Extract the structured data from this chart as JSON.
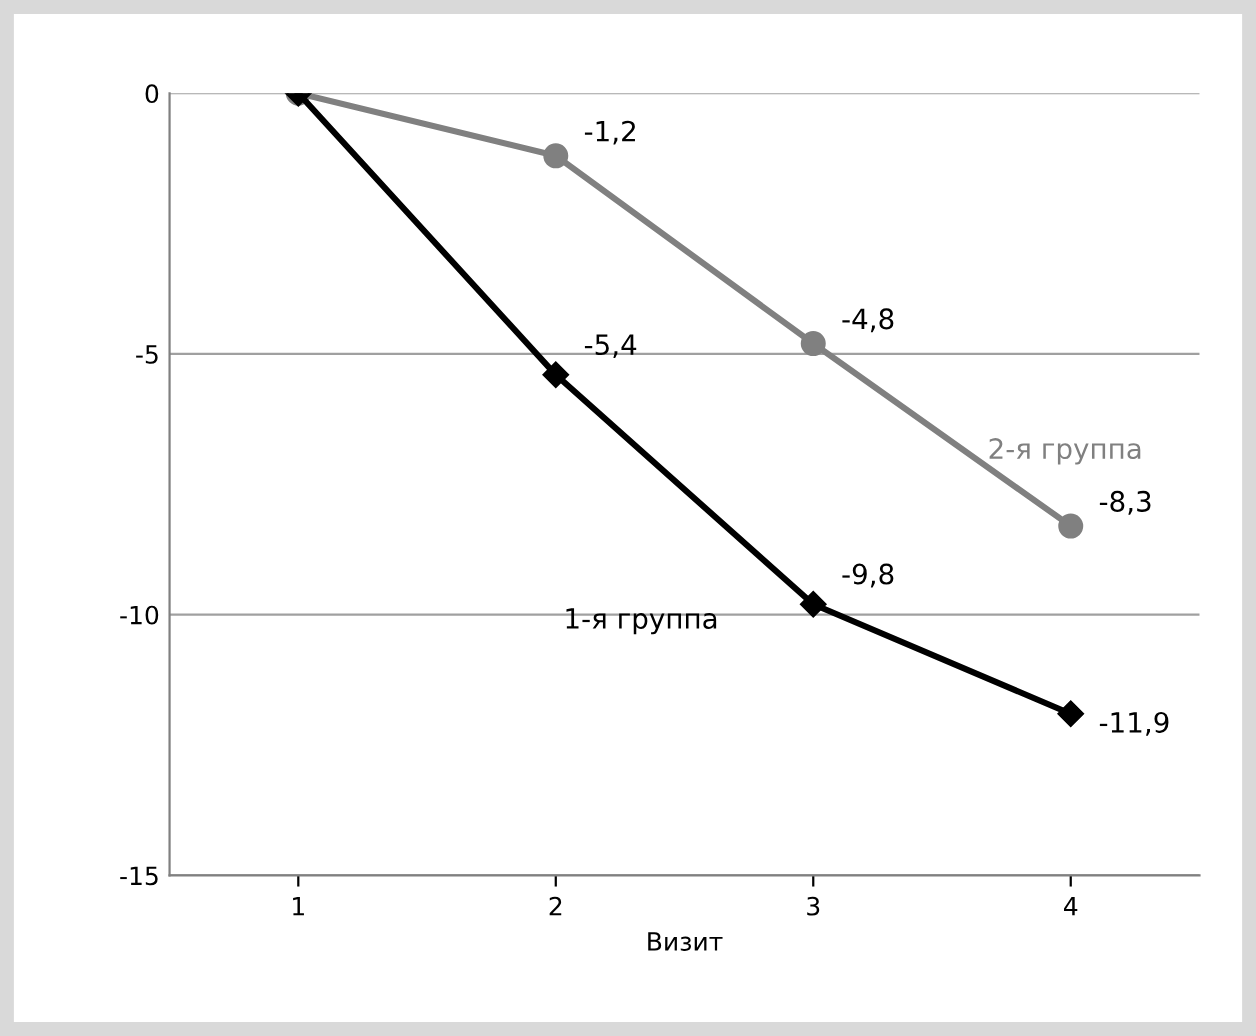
{
  "chart_data": {
    "type": "line",
    "xlabel": "Визит",
    "categories": [
      "1",
      "2",
      "3",
      "4"
    ],
    "series": [
      {
        "name": "2-я группа",
        "color": "#808080",
        "marker": "circle",
        "values": [
          0,
          -1.2,
          -4.8,
          -8.3
        ],
        "value_labels": [
          null,
          "-1,2",
          "-4,8",
          "-8,3"
        ]
      },
      {
        "name": "1-я группа",
        "color": "#000000",
        "marker": "diamond",
        "values": [
          0,
          -5.4,
          -9.8,
          -11.9
        ],
        "value_labels": [
          null,
          "-5,4",
          "-9,8",
          "-11,9"
        ]
      }
    ],
    "ylim": [
      -15,
      0
    ],
    "yticks": [
      {
        "value": 0,
        "label": "0"
      },
      {
        "value": -5,
        "label": "-5"
      },
      {
        "value": -10,
        "label": "-10"
      },
      {
        "value": -15,
        "label": "-15"
      }
    ],
    "grid": "y",
    "legend": false,
    "line_style": "solid"
  }
}
